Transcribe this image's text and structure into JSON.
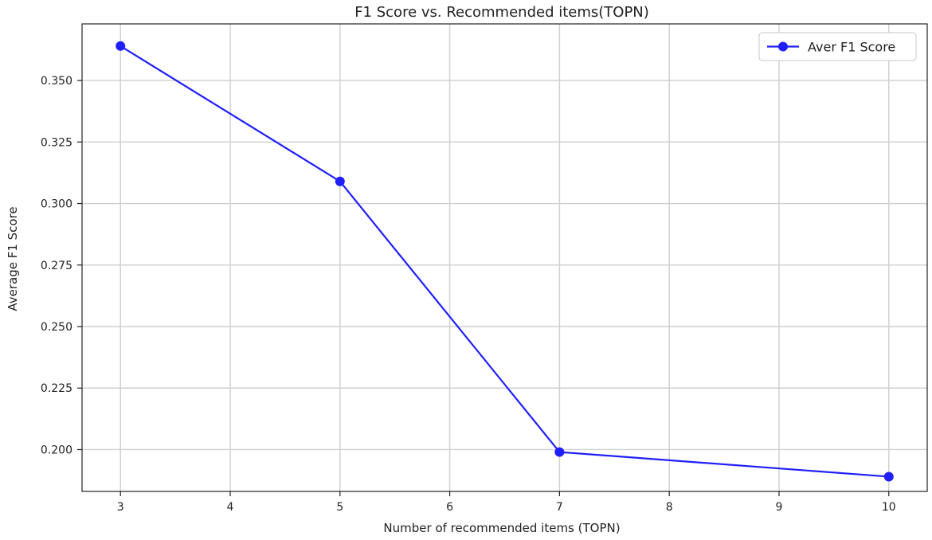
{
  "chart_data": {
    "type": "line",
    "title": "F1 Score vs. Recommended items(TOPN)",
    "xlabel": "Number of recommended items (TOPN)",
    "ylabel": "Average F1 Score",
    "x": [
      3,
      5,
      7,
      10
    ],
    "series": [
      {
        "name": "Aver F1 Score",
        "values": [
          0.364,
          0.309,
          0.199,
          0.189
        ],
        "color": "#1f1fff"
      }
    ],
    "xlim": [
      2.65,
      10.35
    ],
    "ylim": [
      0.183,
      0.373
    ],
    "x_ticks": [
      3,
      4,
      5,
      6,
      7,
      8,
      9,
      10
    ],
    "x_tick_labels": [
      "3",
      "4",
      "5",
      "6",
      "7",
      "8",
      "9",
      "10"
    ],
    "y_ticks": [
      0.2,
      0.225,
      0.25,
      0.275,
      0.3,
      0.325,
      0.35
    ],
    "y_tick_labels": [
      "0.200",
      "0.225",
      "0.250",
      "0.275",
      "0.300",
      "0.325",
      "0.350"
    ],
    "grid": true,
    "legend_position": "top-right",
    "colors": {
      "series": "#1f1fff",
      "grid": "#cfcfcf",
      "axis": "#222222",
      "background": "#ffffff"
    }
  }
}
